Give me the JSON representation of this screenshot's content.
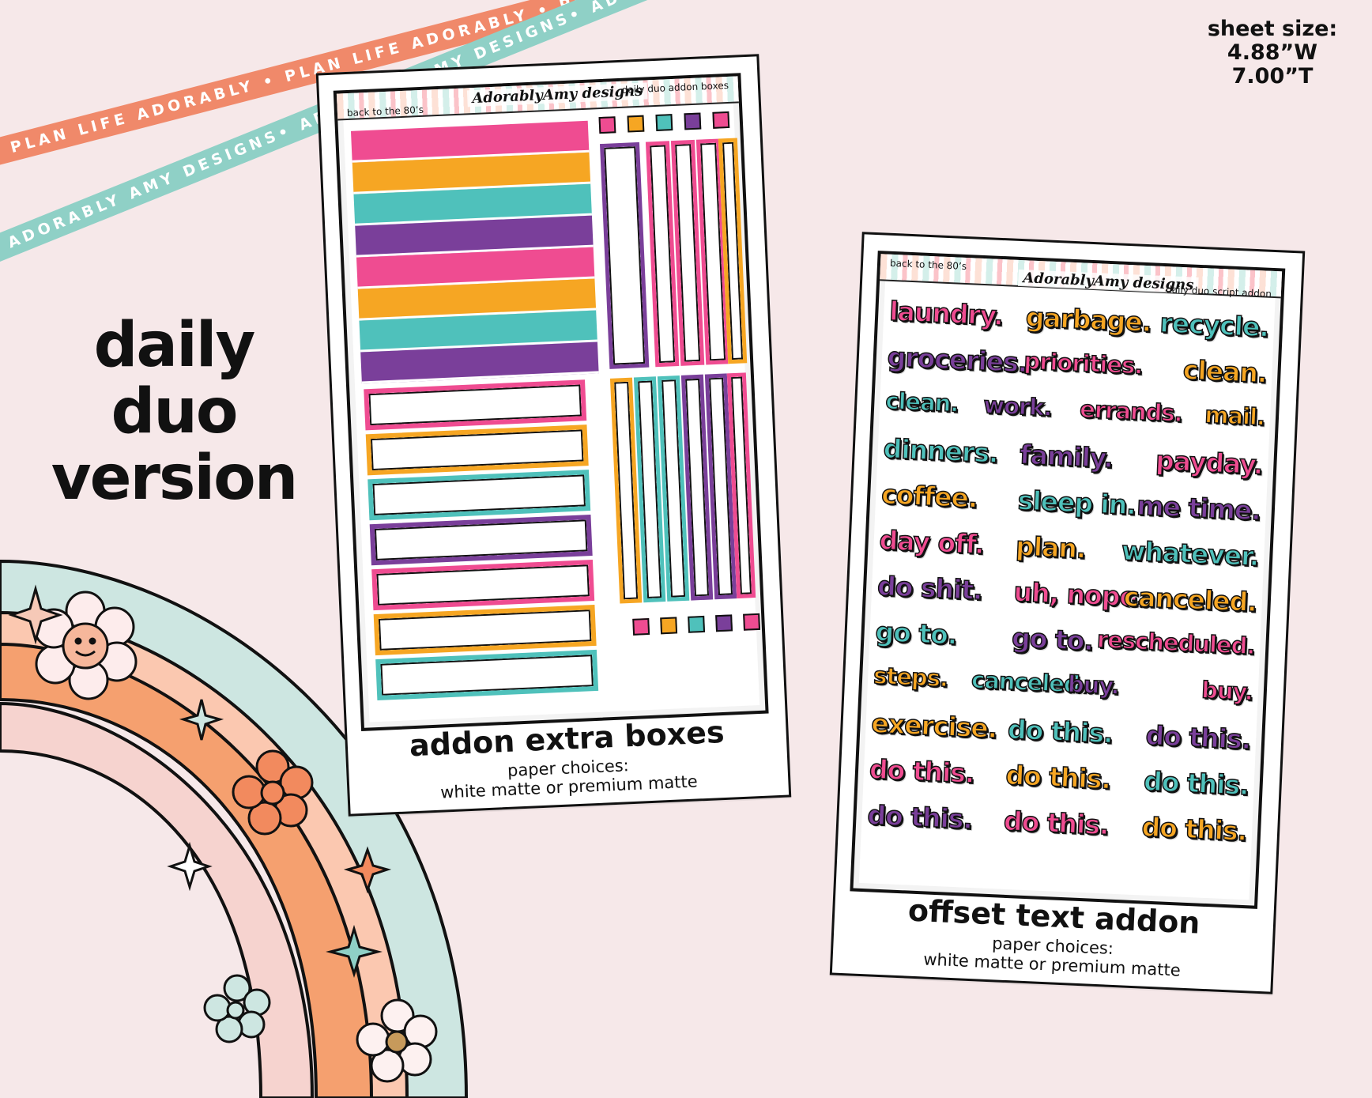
{
  "ribbons": {
    "orange_text": "PLAN LIFE ADORABLY • PLAN LIFE ADORABLY • PLAN LIFE ADORABLY •",
    "teal_text": "ADORABLY AMY DESIGNS• ADORABLY AMY DESIGNS• ADORABLY AMY DESIGNS•",
    "orange_color": "#f0896a",
    "teal_color": "#8fd0c6"
  },
  "title": {
    "line1": "daily",
    "line2": "duo",
    "line3": "version"
  },
  "sheet_size": {
    "label": "sheet size:",
    "width": "4.88”W",
    "height": "7.00”T"
  },
  "colors": {
    "pink": "#ef4c91",
    "orange": "#f6a623",
    "teal": "#4fc1bb",
    "purple": "#7a3f9a",
    "background": "#f6e8e9"
  },
  "sheet1": {
    "theme": "back to the 80’s",
    "logo": "AdorablyAmy designs",
    "name": "daily duo addon boxes",
    "caption": "addon extra boxes",
    "paper_label": "paper choices:",
    "paper_options": "white matte or premium matte"
  },
  "sheet2": {
    "theme": "back to the 80’s",
    "logo": "AdorablyAmy designs",
    "name": "daily duo script addon",
    "caption": "offset text addon",
    "paper_label": "paper choices:",
    "paper_options": "white matte or premium matte",
    "words": [
      [
        "laundry.",
        "garbage.",
        "recycle."
      ],
      [
        "groceries.",
        "priorities.",
        "clean."
      ],
      [
        "clean.",
        "work.",
        "errands.",
        "mail."
      ],
      [
        "dinners.",
        "family.",
        "payday."
      ],
      [
        "coffee.",
        "sleep in.",
        "me time."
      ],
      [
        "day off.",
        "plan.",
        "whatever."
      ],
      [
        "do shit.",
        "uh, nope.",
        "canceled."
      ],
      [
        "go to.",
        "go to.",
        "rescheduled."
      ],
      [
        "steps.",
        "canceled.",
        "buy.",
        "buy."
      ],
      [
        "exercise.",
        "do this.",
        "do this."
      ],
      [
        "do this.",
        "do this.",
        "do this."
      ],
      [
        "do this.",
        "do this.",
        "do this."
      ]
    ]
  }
}
